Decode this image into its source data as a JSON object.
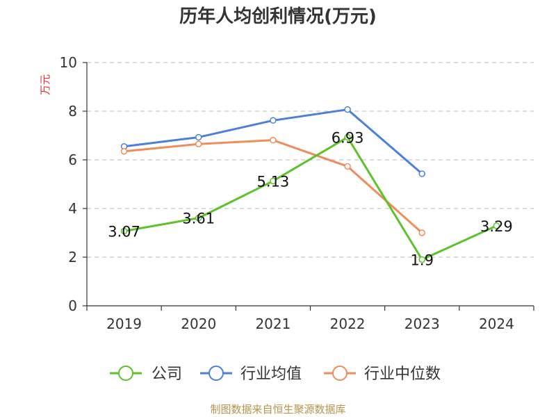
{
  "chart_data": {
    "type": "line",
    "title": "历年人均创利情况(万元)",
    "ylabel": "万元",
    "xlabel": "",
    "ylim": [
      0,
      10
    ],
    "yticks": [
      0,
      2,
      4,
      6,
      8,
      10
    ],
    "categories": [
      "2019",
      "2020",
      "2021",
      "2022",
      "2023",
      "2024"
    ],
    "grid": true,
    "legend_position": "bottom",
    "series": [
      {
        "name": "公司",
        "color": "#5bc228",
        "values": [
          3.07,
          3.61,
          5.13,
          6.93,
          1.9,
          3.29
        ],
        "labels": [
          "3.07",
          "3.61",
          "5.13",
          "6.93",
          "1.9",
          "3.29"
        ]
      },
      {
        "name": "行业均值",
        "color": "#4a7fdc",
        "values": [
          6.55,
          6.93,
          7.62,
          8.07,
          5.43,
          null
        ]
      },
      {
        "name": "行业中位数",
        "color": "#f08c5a",
        "values": [
          6.35,
          6.65,
          6.81,
          5.73,
          3.0,
          null
        ]
      }
    ],
    "source": "制图数据来自恒生聚源数据库"
  }
}
